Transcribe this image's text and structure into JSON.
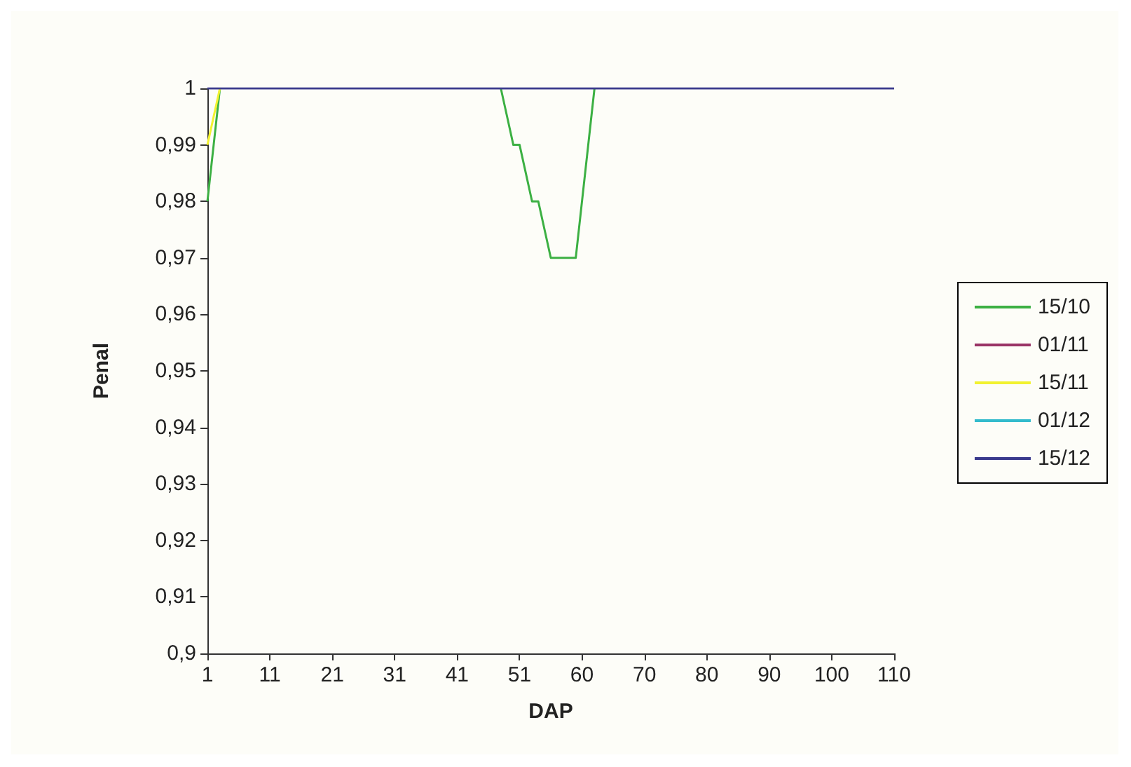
{
  "chart_data": {
    "type": "line",
    "xlabel": "DAP",
    "ylabel": "Penal",
    "categories": [
      "1",
      null,
      null,
      null,
      null,
      null,
      null,
      null,
      null,
      null,
      "11",
      null,
      null,
      null,
      null,
      null,
      null,
      null,
      null,
      null,
      "21",
      null,
      null,
      null,
      null,
      null,
      null,
      null,
      null,
      null,
      "31",
      null,
      null,
      null,
      null,
      null,
      null,
      null,
      null,
      null,
      "41",
      null,
      null,
      null,
      null,
      null,
      null,
      null,
      null,
      null,
      "51",
      null,
      null,
      null,
      null,
      null,
      null,
      null,
      null,
      null,
      "60",
      null,
      null,
      null,
      null,
      null,
      null,
      null,
      null,
      null,
      "70",
      null,
      null,
      null,
      null,
      null,
      null,
      null,
      null,
      null,
      "80",
      null,
      null,
      null,
      null,
      null,
      null,
      null,
      null,
      null,
      "90",
      null,
      null,
      null,
      null,
      null,
      null,
      null,
      null,
      null,
      "100",
      null,
      null,
      null,
      null,
      null,
      null,
      null,
      null,
      null,
      "110"
    ],
    "series": [
      {
        "name": "15/10",
        "color": "#3cb043",
        "values": [
          0.98,
          0.99,
          1,
          null,
          null,
          null,
          null,
          null,
          null,
          null,
          null,
          null,
          null,
          null,
          null,
          null,
          null,
          null,
          null,
          null,
          null,
          null,
          null,
          null,
          null,
          null,
          null,
          null,
          null,
          null,
          null,
          null,
          null,
          null,
          null,
          null,
          null,
          null,
          null,
          null,
          null,
          null,
          null,
          null,
          null,
          null,
          null,
          1,
          0.995,
          0.99,
          0.99,
          0.985,
          0.98,
          0.98,
          0.975,
          0.97,
          0.97,
          0.97,
          0.97,
          0.97,
          0.98,
          0.99,
          1,
          null,
          null,
          null,
          null,
          null,
          null,
          null,
          null,
          null,
          null,
          null,
          null,
          null,
          null,
          null,
          null,
          null,
          null,
          null,
          null,
          null,
          null,
          null,
          null,
          null,
          null,
          null,
          null,
          null,
          null,
          null,
          null,
          null,
          null,
          null,
          null,
          null,
          null,
          null,
          null,
          null,
          null,
          null,
          null,
          null,
          null,
          null,
          null
        ]
      },
      {
        "name": "01/11",
        "color": "#993366",
        "values": [
          null,
          null,
          null,
          null,
          null,
          null,
          null,
          null,
          null,
          null,
          null,
          null,
          null,
          null,
          null,
          null,
          null,
          null,
          null,
          null,
          null,
          null,
          null,
          null,
          null,
          null,
          null,
          null,
          null,
          null,
          null,
          null,
          null,
          null,
          null,
          null,
          null,
          null,
          null,
          null,
          null,
          null,
          null,
          null,
          null,
          null,
          null,
          null,
          null,
          null,
          null,
          null,
          null,
          null,
          null,
          null,
          null,
          null,
          null,
          null,
          null,
          null,
          null,
          null,
          null,
          null,
          null,
          null,
          null,
          null,
          null,
          null,
          null,
          null,
          null,
          null,
          null,
          null,
          null,
          null,
          null,
          null,
          null,
          null,
          null,
          null,
          null,
          null,
          null,
          null,
          null,
          null,
          null,
          null,
          null,
          null,
          null,
          null,
          null,
          null,
          null,
          null,
          null,
          null,
          null,
          null,
          null,
          null,
          null,
          null,
          null
        ]
      },
      {
        "name": "15/11",
        "color": "#f2f230",
        "values": [
          0.99,
          0.995,
          1,
          null,
          null,
          null,
          null,
          null,
          null,
          null,
          null,
          null,
          null,
          null,
          null,
          null,
          null,
          null,
          null,
          null,
          null,
          null,
          null,
          null,
          null,
          null,
          null,
          null,
          null,
          null,
          null,
          null,
          null,
          null,
          null,
          null,
          null,
          null,
          null,
          null,
          null,
          null,
          null,
          null,
          null,
          null,
          null,
          null,
          null,
          null,
          null,
          null,
          null,
          null,
          null,
          null,
          null,
          null,
          null,
          null,
          null,
          null,
          null,
          null,
          null,
          null,
          null,
          null,
          null,
          null,
          null,
          null,
          null,
          null,
          null,
          null,
          null,
          null,
          null,
          null,
          null,
          null,
          null,
          null,
          null,
          null,
          null,
          null,
          null,
          null,
          null,
          null,
          null,
          null,
          null,
          null,
          null,
          null,
          null,
          null,
          null,
          null,
          null,
          null,
          null,
          null,
          null,
          null,
          null,
          null,
          null
        ]
      },
      {
        "name": "01/12",
        "color": "#33bbcc",
        "values": [
          null,
          null,
          null,
          null,
          null,
          null,
          null,
          null,
          null,
          null,
          null,
          null,
          null,
          null,
          null,
          null,
          null,
          null,
          null,
          null,
          null,
          null,
          null,
          null,
          null,
          null,
          null,
          null,
          null,
          null,
          null,
          null,
          null,
          null,
          null,
          null,
          null,
          null,
          null,
          null,
          null,
          null,
          null,
          null,
          null,
          null,
          null,
          null,
          null,
          null,
          null,
          null,
          null,
          null,
          null,
          null,
          null,
          null,
          null,
          null,
          null,
          null,
          null,
          null,
          null,
          null,
          null,
          null,
          null,
          null,
          null,
          null,
          null,
          null,
          null,
          null,
          null,
          null,
          null,
          null,
          null,
          null,
          null,
          null,
          null,
          null,
          null,
          null,
          null,
          null,
          null,
          null,
          null,
          null,
          null,
          null,
          null,
          null,
          null,
          null,
          null,
          null,
          null,
          null,
          null,
          null,
          null,
          null,
          null,
          null,
          null
        ]
      },
      {
        "name": "15/12",
        "color": "#3a3a8c",
        "values": [
          1,
          1,
          1,
          1,
          1,
          1,
          1,
          1,
          1,
          1,
          1,
          1,
          1,
          1,
          1,
          1,
          1,
          1,
          1,
          1,
          1,
          1,
          1,
          1,
          1,
          1,
          1,
          1,
          1,
          1,
          1,
          1,
          1,
          1,
          1,
          1,
          1,
          1,
          1,
          1,
          1,
          1,
          1,
          1,
          1,
          1,
          1,
          1,
          1,
          1,
          1,
          1,
          1,
          1,
          1,
          1,
          1,
          1,
          1,
          1,
          1,
          1,
          1,
          1,
          1,
          1,
          1,
          1,
          1,
          1,
          1,
          1,
          1,
          1,
          1,
          1,
          1,
          1,
          1,
          1,
          1,
          1,
          1,
          1,
          1,
          1,
          1,
          1,
          1,
          1,
          1,
          1,
          1,
          1,
          1,
          1,
          1,
          1,
          1,
          1,
          1,
          1,
          1,
          1,
          1,
          1,
          1,
          1,
          1,
          1,
          1
        ]
      }
    ],
    "ylim": [
      0.9,
      1
    ],
    "yticks": [
      {
        "value": 0.9,
        "label": "0,9"
      },
      {
        "value": 0.91,
        "label": "0,91"
      },
      {
        "value": 0.92,
        "label": "0,92"
      },
      {
        "value": 0.93,
        "label": "0,93"
      },
      {
        "value": 0.94,
        "label": "0,94"
      },
      {
        "value": 0.95,
        "label": "0,95"
      },
      {
        "value": 0.96,
        "label": "0,96"
      },
      {
        "value": 0.97,
        "label": "0,97"
      },
      {
        "value": 0.98,
        "label": "0,98"
      },
      {
        "value": 0.99,
        "label": "0,99"
      },
      1
    ],
    "grid": false,
    "legend": "right",
    "marker": "none",
    "line_style": "solid"
  }
}
